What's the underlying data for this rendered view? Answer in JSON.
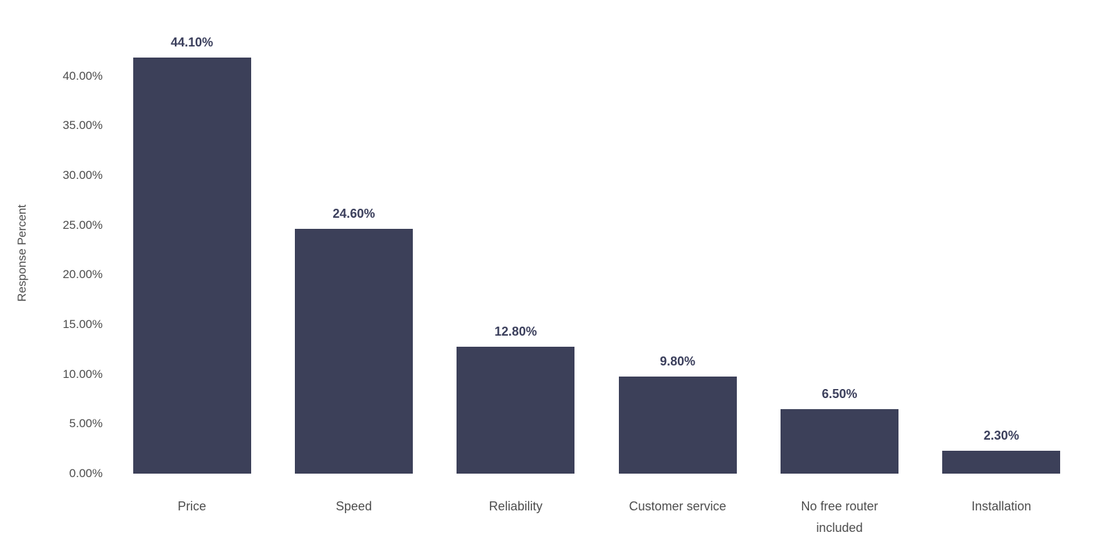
{
  "chart_data": {
    "type": "bar",
    "title": "",
    "categories": [
      "Price",
      "Speed",
      "Reliability",
      "Customer service",
      "No free router included",
      "Installation"
    ],
    "values": [
      44.1,
      24.6,
      12.8,
      9.8,
      6.5,
      2.3
    ],
    "value_labels": [
      "44.10%",
      "24.60%",
      "12.80%",
      "9.80%",
      "6.50%",
      "2.30%"
    ],
    "xlabel": "",
    "ylabel": "Response Percent",
    "ylim": [
      0,
      44.1
    ],
    "yticks": [
      0,
      5,
      10,
      15,
      20,
      25,
      30,
      35,
      40
    ],
    "ytick_labels": [
      "0.00%",
      "5.00%",
      "10.00%",
      "15.00%",
      "20.00%",
      "25.00%",
      "30.00%",
      "35.00%",
      "40.00%"
    ],
    "grid": false,
    "legend": false,
    "bar_color": "#3c4059",
    "value_label_color": "#3b3f5c",
    "tick_label_color": "#4d4d4d"
  }
}
